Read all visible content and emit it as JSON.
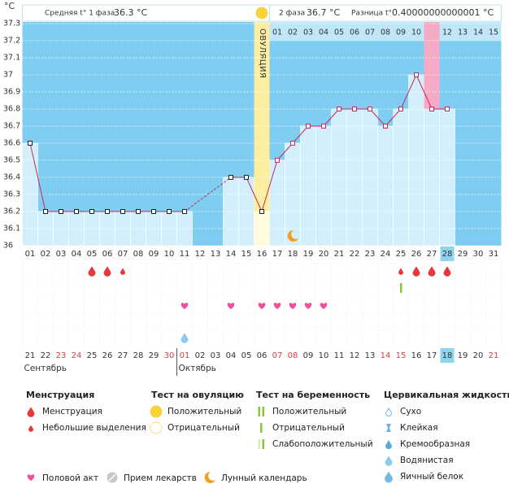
{
  "chart_data": {
    "type": "line",
    "y_unit": "°C",
    "header": {
      "phase1_label": "Средняя t° 1 фаза",
      "phase1_avg": "36.3 °C",
      "phase2_label": "2 фаза",
      "phase2_avg": "36.7 °C",
      "diff_label": "Разница t°",
      "diff_value": "0.40000000000001 °C"
    },
    "categories": [
      "01",
      "02",
      "03",
      "04",
      "05",
      "06",
      "07",
      "08",
      "09",
      "10",
      "11",
      "12",
      "13",
      "14",
      "15",
      "16",
      "17",
      "18",
      "19",
      "20",
      "21",
      "22",
      "23",
      "24",
      "25",
      "26",
      "27",
      "28",
      "29",
      "30",
      "31"
    ],
    "series": [
      {
        "color": "#c8285c",
        "values": [
          36.6,
          36.2,
          36.2,
          36.2,
          36.2,
          36.2,
          36.2,
          36.2,
          36.2,
          36.2,
          36.2,
          null,
          null,
          36.4,
          36.4,
          36.2,
          36.5,
          36.6,
          36.7,
          36.7,
          36.8,
          36.8,
          36.8,
          36.7,
          36.8,
          37.0,
          36.8,
          36.8,
          null,
          null,
          null
        ]
      }
    ],
    "phase_marker_colors": [
      "#222222",
      "#c8285c"
    ],
    "ylim": [
      36,
      37.3
    ],
    "yticks": [
      36,
      36.1,
      36.2,
      36.3,
      36.4,
      36.5,
      36.6,
      36.7,
      36.8,
      36.9,
      37,
      37.1,
      37.2,
      37.3
    ],
    "grid": true,
    "ovulation_day": 15,
    "ovulation_label": "ОВУЛЯЦИЯ",
    "marked_days": [
      26
    ],
    "current_day": 27,
    "phase2_days": [
      "01",
      "02",
      "03",
      "04",
      "05",
      "06",
      "07",
      "08",
      "09",
      "10",
      "11",
      "12",
      "13",
      "14",
      "15"
    ],
    "dates": [
      "21",
      "22",
      "23",
      "24",
      "25",
      "26",
      "27",
      "28",
      "29",
      "30",
      "01",
      "02",
      "03",
      "04",
      "05",
      "06",
      "07",
      "08",
      "09",
      "10",
      "11",
      "12",
      "13",
      "14",
      "15",
      "16",
      "17",
      "18",
      "19",
      "20",
      "21"
    ],
    "weekend": [
      false,
      false,
      true,
      true,
      false,
      false,
      false,
      false,
      false,
      true,
      true,
      false,
      false,
      false,
      false,
      false,
      true,
      true,
      false,
      false,
      false,
      false,
      false,
      true,
      true,
      false,
      false,
      false,
      false,
      false,
      true
    ],
    "months": [
      "Сентябрь",
      "Октябрь"
    ],
    "events": {
      "ovulation_test": [
        null,
        null,
        null,
        null,
        null,
        null,
        null,
        null,
        null,
        null,
        null,
        null,
        null,
        null,
        null,
        0,
        null,
        null,
        null,
        null,
        null,
        null,
        null,
        null,
        null,
        null,
        null,
        null,
        null,
        null,
        null
      ],
      "menstruation": [
        null,
        null,
        null,
        null,
        0,
        0,
        1,
        null,
        null,
        null,
        null,
        null,
        null,
        null,
        null,
        null,
        null,
        null,
        null,
        null,
        null,
        null,
        null,
        null,
        1,
        0,
        0,
        0,
        null,
        null,
        null
      ],
      "pregnancy_test": [
        null,
        null,
        null,
        null,
        null,
        null,
        null,
        null,
        null,
        null,
        null,
        null,
        null,
        null,
        null,
        null,
        null,
        null,
        null,
        null,
        null,
        null,
        null,
        null,
        1,
        null,
        null,
        null,
        null,
        null,
        null
      ],
      "intercourse": [
        false,
        false,
        false,
        false,
        false,
        false,
        false,
        false,
        false,
        false,
        true,
        false,
        false,
        true,
        false,
        true,
        true,
        true,
        true,
        true,
        false,
        false,
        false,
        false,
        false,
        false,
        false,
        false,
        false,
        false,
        false
      ],
      "cervical_fluid": [
        null,
        null,
        null,
        null,
        null,
        null,
        null,
        null,
        null,
        null,
        3,
        null,
        null,
        null,
        null,
        null,
        null,
        null,
        null,
        null,
        null,
        null,
        null,
        null,
        null,
        null,
        null,
        null,
        null,
        null,
        null
      ],
      "moon": [
        false,
        false,
        false,
        false,
        false,
        false,
        false,
        false,
        false,
        false,
        false,
        false,
        false,
        false,
        false,
        false,
        false,
        true,
        false,
        false,
        false,
        false,
        false,
        false,
        false,
        false,
        false,
        false,
        false,
        false,
        false
      ]
    },
    "legend": {
      "groups": [
        {
          "title": "Менструация",
          "items": [
            "Менструация",
            "Небольшие выделения"
          ]
        },
        {
          "title": "Тест на овуляцию",
          "items": [
            "Положительный",
            "Отрицательный"
          ]
        },
        {
          "title": "Тест на беременность",
          "items": [
            "Положительный",
            "Отрицательный",
            "Слабоположительный"
          ]
        },
        {
          "title": "Цервикальная жидкость",
          "items": [
            "Сухо",
            "Клейкая",
            "Кремообразная",
            "Водянистая",
            "Яичный белок"
          ]
        }
      ],
      "other": [
        "Половой акт",
        "Прием лекарств",
        "Лунный календарь"
      ]
    }
  }
}
